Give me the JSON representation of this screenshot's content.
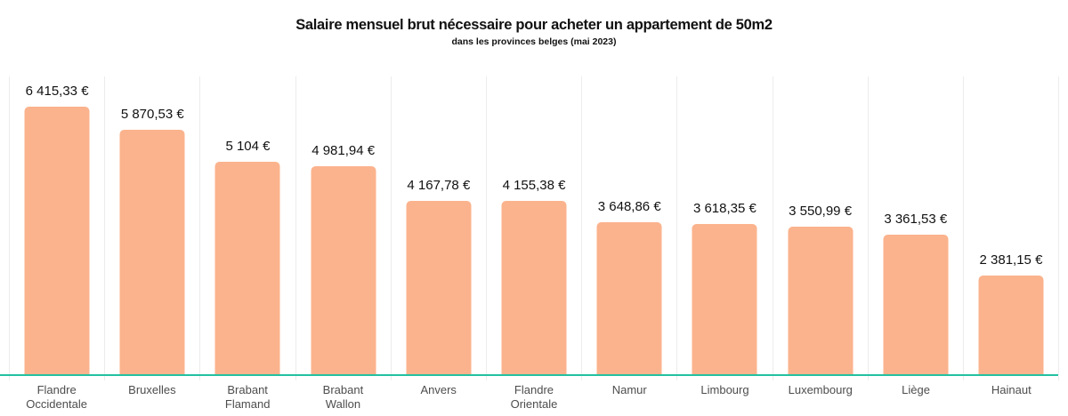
{
  "header": {
    "title": "Salaire mensuel brut nécessaire pour acheter un appartement de 50m2",
    "subtitle": "dans les provinces belges (mai 2023)"
  },
  "chart_data": {
    "type": "bar",
    "title": "Salaire mensuel brut nécessaire pour acheter un appartement de 50m2",
    "subtitle": "dans les provinces belges (mai 2023)",
    "categories": [
      "Flandre\nOccidentale",
      "Bruxelles",
      "Brabant\nFlamand",
      "Brabant\nWallon",
      "Anvers",
      "Flandre\nOrientale",
      "Namur",
      "Limbourg",
      "Luxembourg",
      "Liège",
      "Hainaut"
    ],
    "values": [
      6415.33,
      5870.53,
      5104,
      4981.94,
      4167.78,
      4155.38,
      3648.86,
      3618.35,
      3550.99,
      3361.53,
      2381.15
    ],
    "value_labels": [
      "6 415,33 €",
      "5 870,53 €",
      "5 104 €",
      "4 981,94 €",
      "4 167,78 €",
      "4 155,38 €",
      "3 648,86 €",
      "3 618,35 €",
      "3 550,99 €",
      "3 361,53 €",
      "2 381,15 €"
    ],
    "unit": "€",
    "xlabel": "",
    "ylabel": "",
    "ylim": [
      0,
      6415.33
    ],
    "legend": "none",
    "grid": "vertical-column-separators",
    "value_labels_position": "above-bars",
    "colors": {
      "bar": "#fbb38d",
      "baseline": "#22c1a1",
      "gridline": "#ececec",
      "value_text": "#111111",
      "category_text": "#4d4d4d"
    }
  }
}
